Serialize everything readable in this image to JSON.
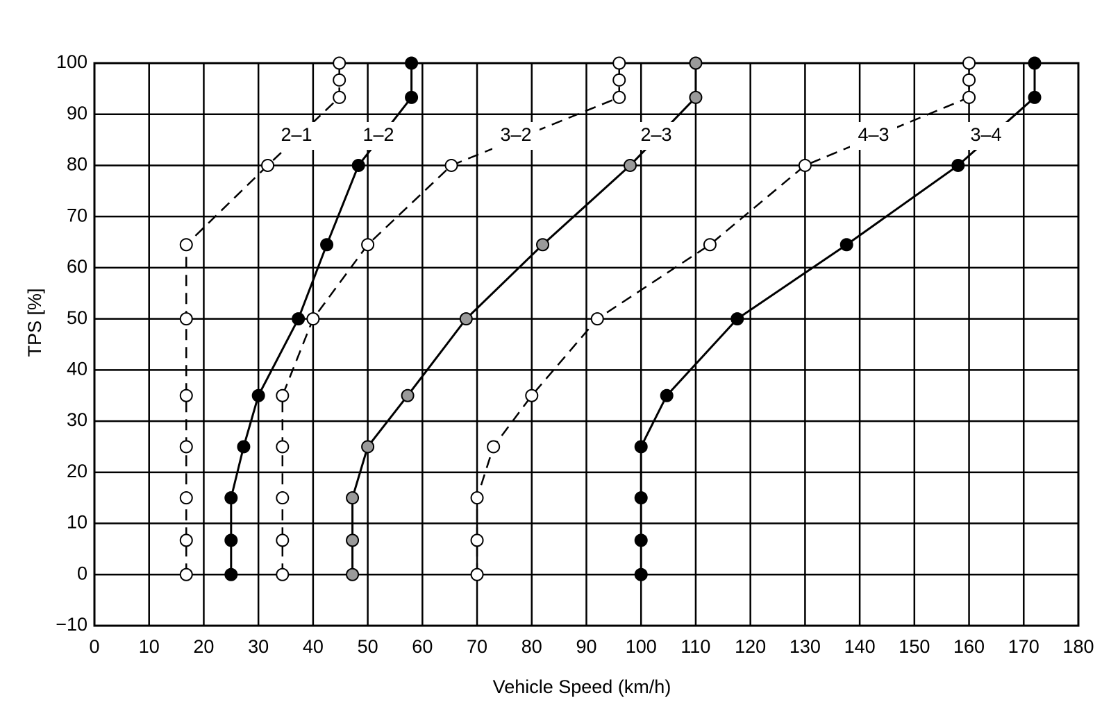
{
  "chart_data": {
    "type": "line",
    "x_label": "Vehicle Speed (km/h)",
    "y_label": "TPS [%]",
    "xlim": [
      0,
      180
    ],
    "xticks": [
      0,
      10,
      20,
      30,
      40,
      50,
      60,
      70,
      80,
      90,
      100,
      110,
      120,
      130,
      140,
      150,
      160,
      170,
      180
    ],
    "ylim": [
      -10,
      100
    ],
    "yticks": [
      {
        "value": -10,
        "label": "−10"
      },
      0,
      10,
      20,
      30,
      40,
      50,
      60,
      70,
      80,
      90,
      100
    ],
    "grid": true,
    "series": [
      {
        "name": "2–1",
        "color": "#000000",
        "marker_fill": "#ffffff",
        "dashed": true,
        "x": [
          16.8,
          16.8,
          16.8,
          16.8,
          16.8,
          16.8,
          16.8,
          31.7,
          44.8,
          44.8,
          44.8
        ],
        "values": [
          0,
          6.7,
          15,
          25,
          35,
          50,
          64.5,
          80,
          93.3,
          96.7,
          100
        ]
      },
      {
        "name": "1–2",
        "color": "#000000",
        "marker_fill": "#000000",
        "dashed": false,
        "x": [
          25,
          25,
          25,
          27.3,
          30,
          37.3,
          42.5,
          48.3,
          58,
          58
        ],
        "values": [
          0,
          6.7,
          15,
          25,
          35,
          50,
          64.5,
          80,
          93.3,
          100
        ]
      },
      {
        "name": "3–2",
        "color": "#000000",
        "marker_fill": "#ffffff",
        "dashed": true,
        "x": [
          34.4,
          34.4,
          34.4,
          34.4,
          34.4,
          40,
          50,
          65.3,
          96,
          96,
          96
        ],
        "values": [
          0,
          6.7,
          15,
          25,
          35,
          50,
          64.5,
          80,
          93.3,
          96.7,
          100
        ]
      },
      {
        "name": "2–3",
        "color": "#000000",
        "marker_fill": "#9a9a9a",
        "dashed": false,
        "x": [
          47.2,
          47.2,
          47.2,
          50,
          57.3,
          68,
          82,
          98,
          110,
          110
        ],
        "values": [
          0,
          6.7,
          15,
          25,
          35,
          50,
          64.5,
          80,
          93.3,
          100
        ]
      },
      {
        "name": "4–3",
        "color": "#000000",
        "marker_fill": "#ffffff",
        "dashed": true,
        "x": [
          70,
          70,
          70,
          73,
          80,
          92,
          112.6,
          130,
          160,
          160,
          160
        ],
        "values": [
          0,
          6.7,
          15,
          25,
          35,
          50,
          64.5,
          80,
          93.3,
          96.7,
          100
        ]
      },
      {
        "name": "3–4",
        "color": "#000000",
        "marker_fill": "#000000",
        "dashed": false,
        "x": [
          100,
          100,
          100,
          100,
          104.7,
          117.6,
          137.6,
          158,
          172,
          172
        ],
        "values": [
          0,
          6.7,
          15,
          25,
          35,
          50,
          64.5,
          80,
          93.3,
          100
        ]
      }
    ]
  }
}
